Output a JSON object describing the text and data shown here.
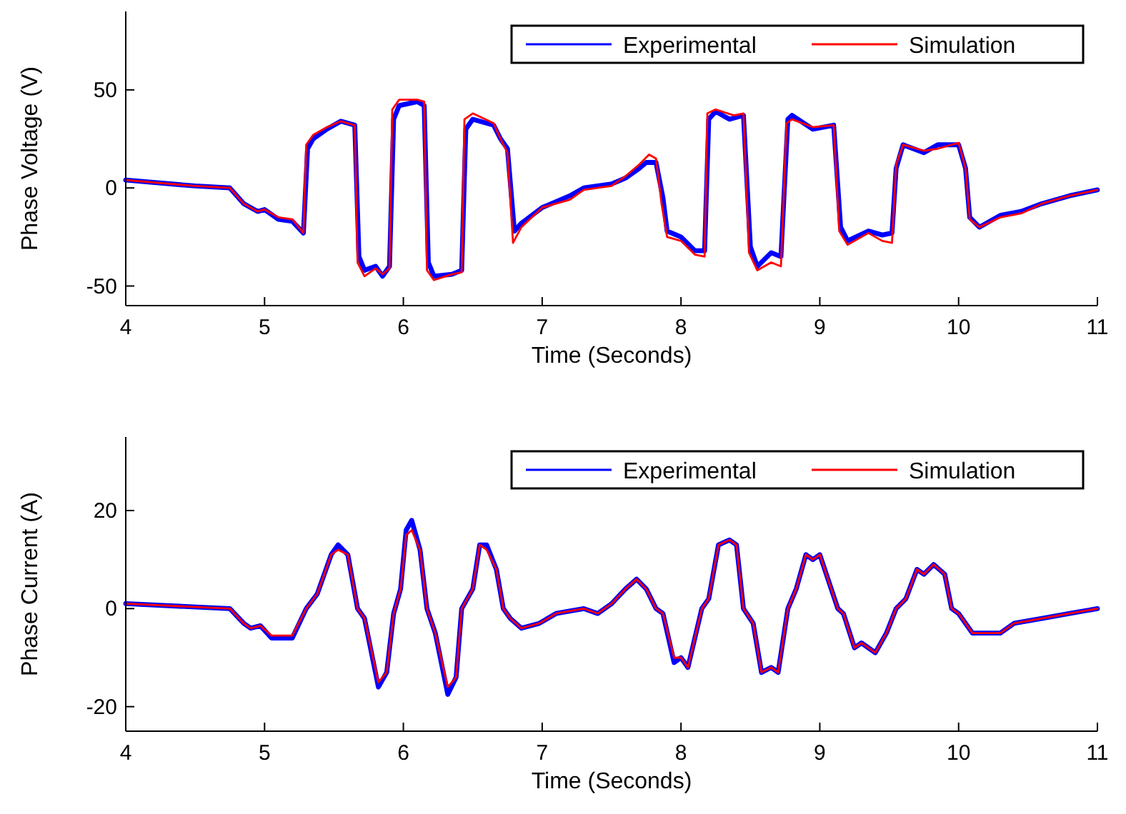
{
  "chart_data": [
    {
      "type": "line",
      "xlabel": "Time (Seconds)",
      "ylabel": "Phase Voltage (V)",
      "xlim": [
        4,
        11
      ],
      "xticks": [
        4,
        5,
        6,
        7,
        8,
        9,
        10,
        11
      ],
      "ylim": [
        -60,
        90
      ],
      "yticks": [
        -50,
        0,
        50
      ],
      "grid": false,
      "legend": "top right",
      "line_style": "solid",
      "series": [
        {
          "name": "Experimental",
          "color": "#0000ff",
          "x": [
            4,
            4.5,
            4.75,
            4.85,
            4.95,
            5,
            5.1,
            5.2,
            5.28,
            5.31,
            5.35,
            5.45,
            5.55,
            5.65,
            5.68,
            5.72,
            5.8,
            5.85,
            5.9,
            5.93,
            5.97,
            6.1,
            6.15,
            6.18,
            6.22,
            6.35,
            6.42,
            6.45,
            6.5,
            6.65,
            6.7,
            6.75,
            6.8,
            6.85,
            7,
            7.2,
            7.3,
            7.5,
            7.6,
            7.7,
            7.75,
            7.82,
            7.87,
            7.9,
            8,
            8.1,
            8.17,
            8.2,
            8.25,
            8.35,
            8.45,
            8.5,
            8.55,
            8.65,
            8.72,
            8.77,
            8.8,
            8.95,
            9.1,
            9.15,
            9.2,
            9.35,
            9.45,
            9.52,
            9.55,
            9.6,
            9.75,
            9.85,
            10,
            10.05,
            10.08,
            10.15,
            10.3,
            10.45,
            10.6,
            10.8,
            11
          ],
          "values": [
            4,
            1,
            0,
            -8,
            -12,
            -11,
            -16,
            -17,
            -23,
            20,
            25,
            30,
            34,
            32,
            -35,
            -42,
            -40,
            -45,
            -40,
            35,
            42,
            44,
            42,
            -38,
            -45,
            -44,
            -42,
            30,
            35,
            32,
            25,
            20,
            -22,
            -18,
            -10,
            -4,
            0,
            2,
            5,
            10,
            13,
            13,
            -5,
            -22,
            -25,
            -32,
            -32,
            35,
            39,
            35,
            37,
            -30,
            -40,
            -33,
            -35,
            35,
            37,
            30,
            32,
            -20,
            -27,
            -22,
            -24,
            -23,
            10,
            22,
            18,
            22,
            22,
            10,
            -15,
            -20,
            -14,
            -12,
            -8,
            -4,
            -1
          ]
        },
        {
          "name": "Simulation",
          "color": "#ff0000",
          "x": [
            4,
            4.5,
            4.75,
            4.85,
            4.95,
            5,
            5.1,
            5.2,
            5.28,
            5.3,
            5.35,
            5.45,
            5.55,
            5.65,
            5.67,
            5.72,
            5.8,
            5.85,
            5.9,
            5.92,
            5.97,
            6.1,
            6.15,
            6.17,
            6.22,
            6.35,
            6.42,
            6.44,
            6.5,
            6.65,
            6.7,
            6.75,
            6.79,
            6.85,
            7,
            7.2,
            7.3,
            7.5,
            7.6,
            7.7,
            7.77,
            7.82,
            7.86,
            7.9,
            8,
            8.1,
            8.17,
            8.19,
            8.25,
            8.38,
            8.45,
            8.49,
            8.55,
            8.65,
            8.72,
            8.76,
            8.8,
            8.95,
            9.1,
            9.14,
            9.2,
            9.35,
            9.45,
            9.52,
            9.55,
            9.6,
            9.75,
            9.85,
            10,
            10.05,
            10.08,
            10.15,
            10.3,
            10.45,
            10.6,
            10.8,
            11
          ],
          "values": [
            4,
            1,
            0,
            -8,
            -12,
            -11,
            -15,
            -16,
            -23,
            22,
            27,
            31,
            34,
            32,
            -38,
            -45,
            -41,
            -44,
            -41,
            40,
            45,
            45,
            44,
            -42,
            -47,
            -44,
            -43,
            35,
            38,
            33,
            25,
            18,
            -28,
            -20,
            -10,
            -6,
            -1,
            1,
            6,
            12,
            17,
            15,
            -8,
            -25,
            -27,
            -34,
            -35,
            38,
            40,
            37,
            38,
            -33,
            -42,
            -38,
            -40,
            33,
            35,
            31,
            32,
            -22,
            -29,
            -23,
            -27,
            -28,
            12,
            22,
            19,
            20,
            23,
            10,
            -16,
            -20,
            -15,
            -13,
            -8,
            -4,
            -1
          ]
        }
      ]
    },
    {
      "type": "line",
      "xlabel": "Time (Seconds)",
      "ylabel": "Phase Current (A)",
      "xlim": [
        4,
        11
      ],
      "xticks": [
        4,
        5,
        6,
        7,
        8,
        9,
        10,
        11
      ],
      "ylim": [
        -25,
        35
      ],
      "yticks": [
        -20,
        0,
        20
      ],
      "grid": false,
      "legend": "top right",
      "line_style": "solid",
      "series": [
        {
          "name": "Experimental",
          "color": "#0000ff",
          "x": [
            4,
            4.75,
            4.85,
            4.9,
            4.97,
            5.05,
            5.2,
            5.3,
            5.38,
            5.48,
            5.53,
            5.6,
            5.67,
            5.72,
            5.82,
            5.88,
            5.93,
            5.98,
            6.02,
            6.06,
            6.12,
            6.17,
            6.23,
            6.32,
            6.38,
            6.42,
            6.5,
            6.55,
            6.6,
            6.67,
            6.72,
            6.77,
            6.85,
            6.98,
            7.1,
            7.3,
            7.4,
            7.5,
            7.6,
            7.68,
            7.75,
            7.82,
            7.87,
            7.95,
            8,
            8.05,
            8.15,
            8.2,
            8.27,
            8.35,
            8.4,
            8.45,
            8.52,
            8.58,
            8.65,
            8.7,
            8.77,
            8.83,
            8.9,
            8.95,
            9,
            9.13,
            9.17,
            9.25,
            9.3,
            9.4,
            9.48,
            9.55,
            9.62,
            9.7,
            9.75,
            9.82,
            9.9,
            9.95,
            10,
            10.1,
            10.2,
            10.3,
            10.4,
            10.6,
            10.8,
            11
          ],
          "values": [
            1,
            0,
            -3,
            -4,
            -3.5,
            -6,
            -6,
            0,
            3,
            11,
            13,
            11,
            0,
            -2,
            -16,
            -13,
            -1,
            4,
            16,
            18,
            12,
            0,
            -5,
            -17.5,
            -14,
            0,
            4,
            13,
            13,
            8,
            0,
            -2,
            -4,
            -3,
            -1,
            0,
            -1,
            1,
            4,
            6,
            4,
            0,
            -1,
            -11,
            -10,
            -12,
            0,
            2,
            13,
            14,
            13,
            0,
            -3,
            -13,
            -12,
            -13,
            0,
            4,
            11,
            10,
            11,
            0,
            -1,
            -8,
            -7,
            -9,
            -5,
            0,
            2,
            8,
            7,
            9,
            7,
            0,
            -1,
            -5,
            -5,
            -5,
            -3,
            -2,
            -1,
            0
          ]
        },
        {
          "name": "Simulation",
          "color": "#ff0000",
          "x": [
            4,
            4.75,
            4.85,
            4.9,
            4.97,
            5.05,
            5.2,
            5.3,
            5.38,
            5.48,
            5.53,
            5.6,
            5.67,
            5.72,
            5.82,
            5.88,
            5.93,
            5.98,
            6.02,
            6.06,
            6.12,
            6.17,
            6.23,
            6.32,
            6.38,
            6.42,
            6.5,
            6.55,
            6.6,
            6.67,
            6.72,
            6.77,
            6.85,
            6.98,
            7.1,
            7.3,
            7.4,
            7.5,
            7.6,
            7.68,
            7.75,
            7.82,
            7.87,
            7.95,
            8,
            8.05,
            8.15,
            8.2,
            8.27,
            8.35,
            8.4,
            8.45,
            8.52,
            8.58,
            8.65,
            8.7,
            8.77,
            8.83,
            8.9,
            8.95,
            9,
            9.13,
            9.17,
            9.25,
            9.3,
            9.4,
            9.48,
            9.55,
            9.62,
            9.7,
            9.75,
            9.82,
            9.9,
            9.95,
            10,
            10.1,
            10.2,
            10.3,
            10.4,
            10.6,
            10.8,
            11
          ],
          "values": [
            1,
            0,
            -3,
            -4,
            -3.5,
            -5.5,
            -5.5,
            0,
            3,
            11,
            12,
            11,
            0,
            -2,
            -15,
            -13,
            -1,
            4,
            15,
            16,
            12,
            0,
            -5,
            -16,
            -14,
            0,
            4,
            13,
            12,
            8,
            0,
            -2,
            -4,
            -3,
            -1,
            0,
            -1,
            1,
            4,
            6,
            4,
            0,
            -1,
            -10,
            -10,
            -12,
            0,
            2,
            13,
            14,
            13,
            0,
            -3,
            -13,
            -12,
            -13,
            0,
            4,
            11,
            10,
            11,
            0,
            -1,
            -8,
            -7,
            -9,
            -5,
            0,
            2,
            8,
            7,
            9,
            7,
            0,
            -1,
            -5,
            -5,
            -5,
            -3,
            -2,
            -1,
            0
          ]
        }
      ]
    }
  ]
}
